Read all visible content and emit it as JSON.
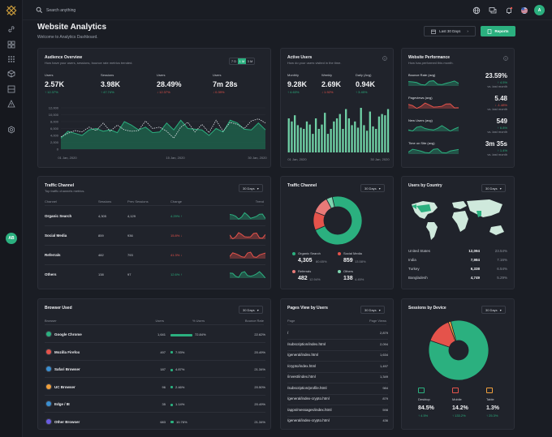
{
  "colors": {
    "accent": "#2bb07f",
    "red": "#e5534b",
    "pink": "#e87a78",
    "teal": "#2bb07f",
    "mint": "#7fd6b0"
  },
  "search": {
    "placeholder": "Search anything"
  },
  "header": {
    "title": "Website Analytics",
    "subtitle": "Welcome to Analytics Dashboard.",
    "date_range": "Last 30 Days",
    "reports_label": "Reports"
  },
  "sidebar": {
    "avatar": "AB",
    "icons": [
      "link-icon",
      "grid-icon",
      "apps-icon",
      "box-icon",
      "list-icon",
      "alert-icon",
      "settings-icon"
    ]
  },
  "topbar": {
    "avatar": "A",
    "icons": [
      "globe-icon",
      "chat-icon",
      "bell-icon",
      "flag-icon"
    ]
  },
  "audience": {
    "title": "Audience Overview",
    "subtitle": "How have your users, sessions, bounce rate metrics trended.",
    "ranges": [
      "7 D",
      "1 M",
      "3 M"
    ],
    "active_range": "1 M",
    "stats": [
      {
        "label": "Users",
        "value": "2.57K",
        "change": "↑ 12.37%",
        "dir": "up"
      },
      {
        "label": "Sessions",
        "value": "3.98K",
        "change": "↑ 47.74%",
        "dir": "up"
      },
      {
        "label": "Users",
        "value": "28.49%",
        "change": "↓ 12.37%",
        "dir": "down"
      },
      {
        "label": "Users",
        "value": "7m 28s",
        "change": "↓ 0.39%",
        "dir": "down"
      }
    ],
    "y_ticks": [
      "12,000",
      "10,000",
      "8,000",
      "6,000",
      "4,000",
      "2,000",
      "0"
    ],
    "x_ticks": [
      "01 Jan, 2020",
      "15 Jan, 2020",
      "30 Jan, 2020"
    ]
  },
  "chart_data": [
    {
      "type": "area",
      "title": "Audience Overview",
      "ylim": [
        0,
        12000
      ],
      "x_ticks": [
        "01 Jan, 2020",
        "15 Jan, 2020",
        "30 Jan, 2020"
      ],
      "series": [
        {
          "values": [
            3200,
            5200,
            4600,
            4000,
            5600,
            6000,
            5200,
            5600,
            4800,
            8000,
            7000,
            5600,
            6400,
            4800,
            5000,
            7600,
            5600,
            8400,
            6000,
            5800,
            5600,
            4000,
            6000,
            5000,
            8400,
            7600,
            5800,
            5600,
            7600,
            5600
          ]
        },
        {
          "values": [
            3600,
            4600,
            5400,
            5000,
            6400,
            5400,
            7600,
            5200,
            7000,
            5600,
            5200,
            5400,
            8200,
            6000,
            6400,
            5200,
            3200,
            6400,
            7800,
            5000,
            7200,
            4800,
            8400,
            5200,
            7800,
            7200,
            6000,
            8200,
            8800,
            7600
          ]
        }
      ]
    },
    {
      "type": "bar",
      "title": "Active Users",
      "x_ticks": [
        "01 Jan, 2020",
        "30 Jan, 2020"
      ],
      "values": [
        55,
        50,
        60,
        44,
        40,
        38,
        50,
        45,
        30,
        55,
        38,
        45,
        64,
        30,
        38,
        50,
        55,
        62,
        38,
        70,
        55,
        44,
        50,
        40,
        72,
        44,
        35,
        66,
        42,
        38,
        58,
        62,
        60,
        70
      ]
    },
    {
      "type": "pie",
      "title": "Traffic Channel",
      "labels": [
        "Organic Search",
        "Social Media",
        "Referrals",
        "Others"
      ],
      "values": [
        80.65,
        13.58,
        12.94,
        4.45
      ]
    },
    {
      "type": "pie",
      "title": "Sessions by Device",
      "labels": [
        "Desktop",
        "Mobile",
        "Table"
      ],
      "values": [
        84.5,
        14.2,
        1.3
      ]
    }
  ],
  "active_users": {
    "title": "Active Users",
    "subtitle": "How do your users visited in the time.",
    "stats": [
      {
        "label": "Monthly",
        "value": "9.28K",
        "change": "↑ 4.63%",
        "dir": "up"
      },
      {
        "label": "Weekly",
        "value": "2.69K",
        "change": "↓ 1.92%",
        "dir": "down"
      },
      {
        "label": "Daily (Avg)",
        "value": "0.94K",
        "change": "↑ 3.45%",
        "dir": "up"
      }
    ],
    "x_ticks": [
      "01 Jan, 2020",
      "30 Jan, 2020"
    ]
  },
  "performance": {
    "title": "Website Performance",
    "subtitle": "How has performed this month.",
    "rows": [
      {
        "label": "Bounce Rate (avg)",
        "value": "23.59%",
        "change": "↑ 4.5%",
        "dir": "up",
        "note": "vs. last month"
      },
      {
        "label": "Pageviews (avg)",
        "value": "5.48",
        "change": "↓ -1.48%",
        "dir": "down",
        "note": "vs. last month"
      },
      {
        "label": "New Users (avg)",
        "value": "549",
        "change": "↑ 6.8%",
        "dir": "up",
        "note": "vs. last month"
      },
      {
        "label": "Time on Site (avg)",
        "value": "3m 35s",
        "change": "↑ 1.4%",
        "dir": "up",
        "note": "vs. last month"
      }
    ]
  },
  "traffic_table": {
    "title": "Traffic Channel",
    "subtitle": "Top traffic channels metrics.",
    "range": "30 Days",
    "headers": [
      "Channel",
      "Sessions",
      "Prev Sessions",
      "Change",
      "Trend"
    ],
    "rows": [
      {
        "channel": "Organic Search",
        "sessions": "4,305",
        "prev": "4,129",
        "change": "4.29% ↑",
        "dir": "up"
      },
      {
        "channel": "Social Media",
        "sessions": "859",
        "prev": "936",
        "change": "15.8% ↓",
        "dir": "down"
      },
      {
        "channel": "Referrals",
        "sessions": "482",
        "prev": "793",
        "change": "41.3% ↓",
        "dir": "down"
      },
      {
        "channel": "Others",
        "sessions": "138",
        "prev": "97",
        "change": "12.6% ↑",
        "dir": "up"
      }
    ]
  },
  "traffic_donut": {
    "title": "Traffic Channel",
    "range": "30 Days",
    "legend": [
      {
        "label": "Organic Search",
        "value": "4,305",
        "pct": "80.65%",
        "color": "#2bb07f"
      },
      {
        "label": "Social Media",
        "value": "859",
        "pct": "13.58%",
        "color": "#e5534b"
      },
      {
        "label": "Referrals",
        "value": "482",
        "pct": "12.94%",
        "color": "#e87a78"
      },
      {
        "label": "Others",
        "value": "138",
        "pct": "4.45%",
        "color": "#7fd6b0"
      }
    ]
  },
  "country": {
    "title": "Users by Country",
    "range": "30 Days",
    "rows": [
      {
        "country": "United States",
        "users": "12,094",
        "pct": "23.54%"
      },
      {
        "country": "India",
        "users": "7,984",
        "pct": "7.16%"
      },
      {
        "country": "Turkey",
        "users": "6,338",
        "pct": "6.54%"
      },
      {
        "country": "Bangladesh",
        "users": "4,749",
        "pct": "5.29%"
      }
    ]
  },
  "browser": {
    "title": "Browser Used",
    "range": "30 Days",
    "headers": [
      "Browser",
      "Users",
      "% Users",
      "Bounce Rate"
    ],
    "rows": [
      {
        "name": "Google Chrome",
        "users": "1,641",
        "pct": "72.84%",
        "pct_value": 72.84,
        "bounce": "22.62%",
        "color": "#2bb07f"
      },
      {
        "name": "Mozilla Firefox",
        "users": "497",
        "pct": "7.93%",
        "pct_value": 7.93,
        "bounce": "20.49%",
        "color": "#e5534b"
      },
      {
        "name": "Safari Browser",
        "users": "187",
        "pct": "4.87%",
        "pct_value": 4.87,
        "bounce": "21.34%",
        "color": "#3a8fd1"
      },
      {
        "name": "UC Browser",
        "users": "96",
        "pct": "2.46%",
        "pct_value": 2.46,
        "bounce": "20.50%",
        "color": "#f0a03c"
      },
      {
        "name": "Edge / IE",
        "users": "35",
        "pct": "1.14%",
        "pct_value": 1.14,
        "bounce": "20.49%",
        "color": "#3a8fd1"
      },
      {
        "name": "Other Browser",
        "users": "683",
        "pct": "10.76%",
        "pct_value": 10.76,
        "bounce": "21.34%",
        "color": "#6a5be2"
      }
    ]
  },
  "pages": {
    "title": "Pages View by Users",
    "range": "30 Days",
    "headers": [
      "Page",
      "Page Views"
    ],
    "rows": [
      {
        "page": "/",
        "views": "2,879"
      },
      {
        "page": "/subscription/index.html",
        "views": "2,094"
      },
      {
        "page": "/general/index.html",
        "views": "1,634"
      },
      {
        "page": "/crypto/index.html",
        "views": "1,497"
      },
      {
        "page": "/invest/index.html",
        "views": "1,349"
      },
      {
        "page": "/subscription/profile.html",
        "views": "984"
      },
      {
        "page": "/general/index-crypto.html",
        "views": "879"
      },
      {
        "page": "/apps/messages/index.html",
        "views": "598"
      },
      {
        "page": "/general/index-crypto.html",
        "views": "436"
      }
    ]
  },
  "devices": {
    "title": "Sessions by Device",
    "range": "30 Days",
    "items": [
      {
        "label": "Desktop",
        "value": "84.5%",
        "change": "↑ 4.5%",
        "icon": "monitor-icon",
        "color": "#2bb07f"
      },
      {
        "label": "Mobile",
        "value": "14.2%",
        "change": "↑ 133.2%",
        "icon": "mobile-icon",
        "color": "#e5534b"
      },
      {
        "label": "Table",
        "value": "1.3%",
        "change": "↑ 25.3%",
        "icon": "tablet-icon",
        "color": "#f0a03c"
      }
    ]
  }
}
